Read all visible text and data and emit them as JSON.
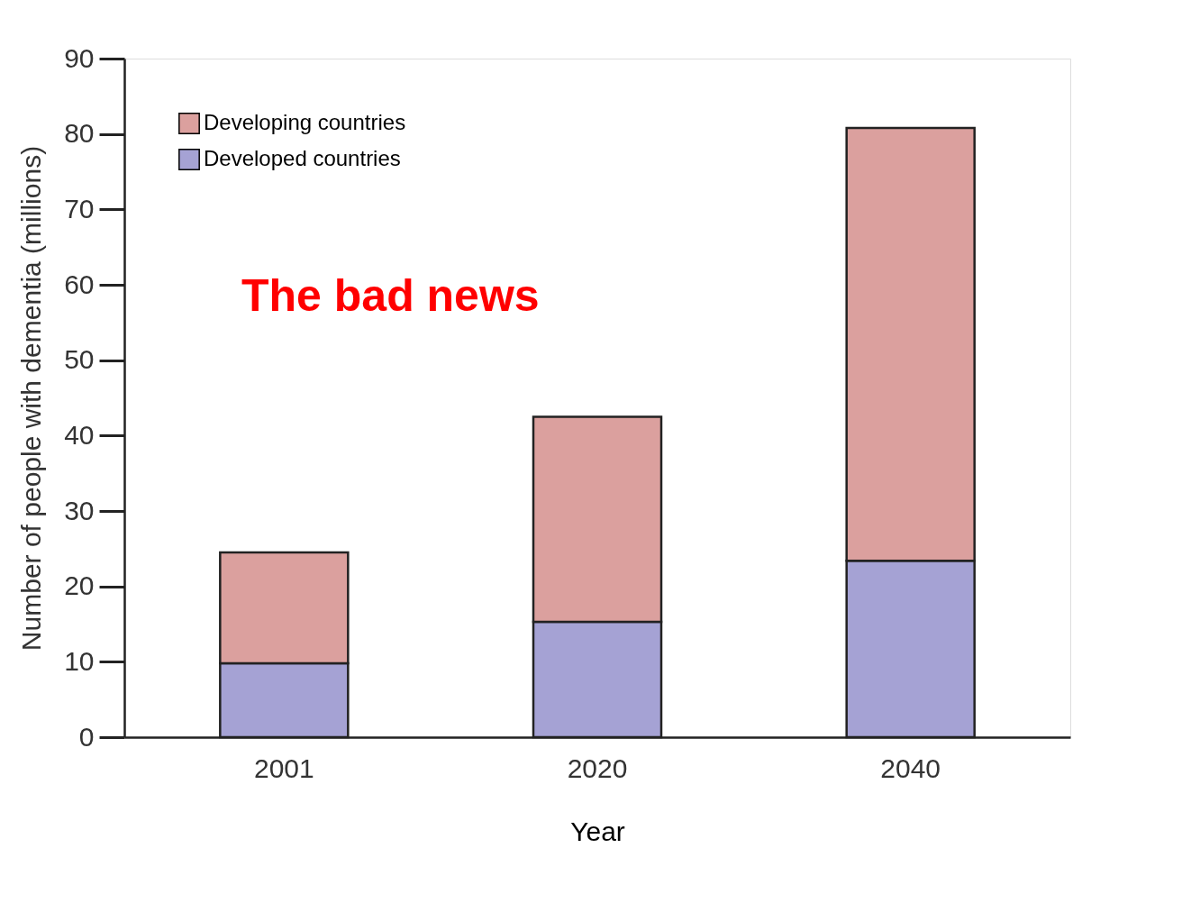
{
  "chart_data": {
    "type": "bar",
    "stacked": true,
    "xlabel": "Year",
    "ylabel": "Number of people with dementia (millions)",
    "categories": [
      "2001",
      "2020",
      "2040"
    ],
    "series": [
      {
        "name": "Developed countries",
        "color": "#a5a2d4",
        "values": [
          9.8,
          15.3,
          23.4
        ]
      },
      {
        "name": "Developing countries",
        "color": "#dba09e",
        "values": [
          14.7,
          27.2,
          57.4
        ]
      }
    ],
    "ylim": [
      0,
      90
    ],
    "yticks": [
      0,
      10,
      20,
      30,
      40,
      50,
      60,
      70,
      80,
      90
    ],
    "grid": false,
    "legend": "top left",
    "annotations": [
      "The bad news"
    ]
  }
}
